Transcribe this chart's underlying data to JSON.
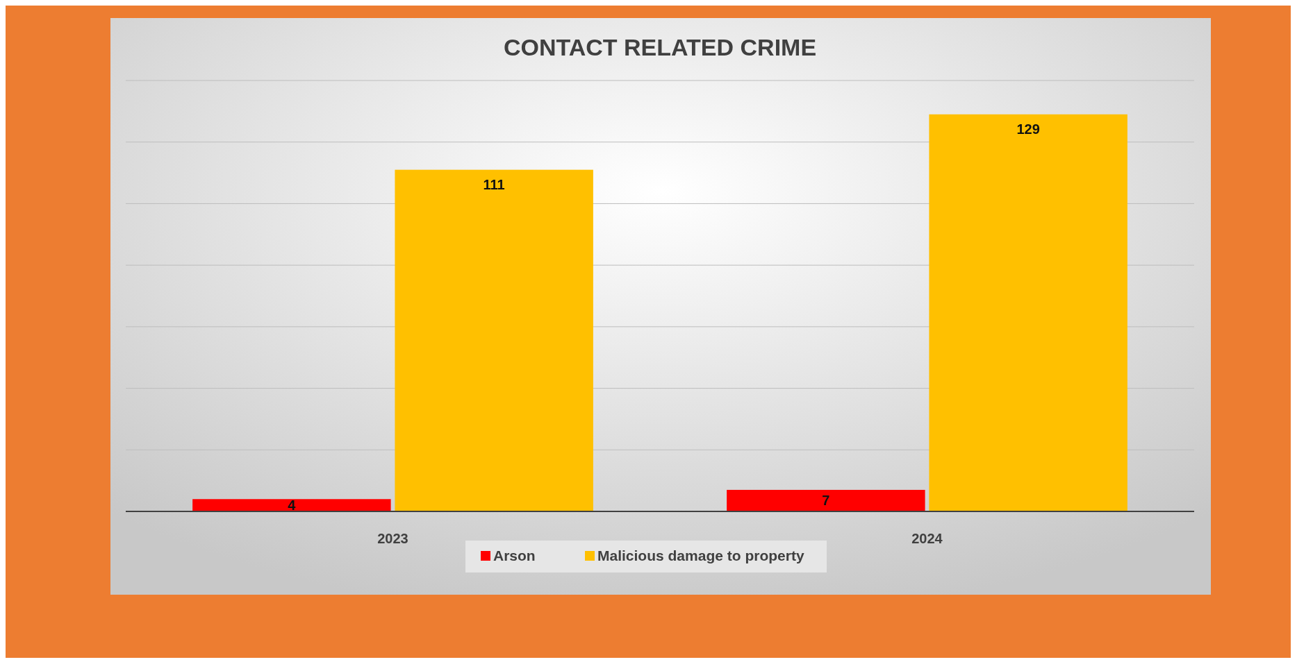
{
  "chart_data": {
    "type": "bar",
    "title": "CONTACT RELATED CRIME",
    "categories": [
      "2023",
      "2024"
    ],
    "series": [
      {
        "name": "Arson",
        "color": "#ff0000",
        "values": [
          4,
          7
        ]
      },
      {
        "name": "Malicious damage to property",
        "color": "#ffc000",
        "values": [
          111,
          129
        ]
      }
    ],
    "ylim": [
      0,
      140
    ],
    "yticks": [
      {
        "value": 0,
        "label": null
      },
      {
        "value": 20,
        "label": null
      },
      {
        "value": 40,
        "label": null
      },
      {
        "value": 60,
        "label": null
      },
      {
        "value": 80,
        "label": null
      },
      {
        "value": 100,
        "label": null
      },
      {
        "value": 120,
        "label": null
      },
      {
        "value": 140,
        "label": null
      }
    ],
    "grid": "y",
    "tick_labels": "x",
    "data_labels": true,
    "legend": "bottom"
  }
}
